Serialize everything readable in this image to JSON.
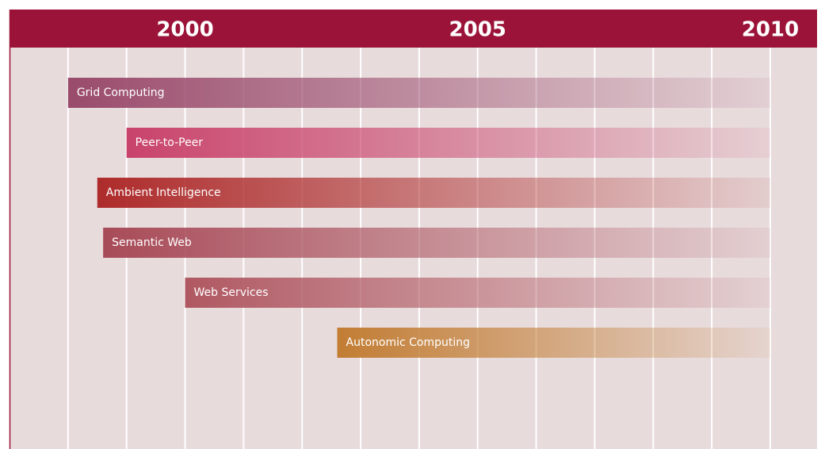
{
  "chart_data": {
    "type": "timeline",
    "xlim": [
      1997,
      2010.8
    ],
    "xticks": [
      2000,
      2005,
      2010
    ],
    "grid_lines": [
      1998,
      1999,
      2000,
      2001,
      2002,
      2003,
      2004,
      2005,
      2006,
      2007,
      2008,
      2009,
      2010
    ],
    "tasks": [
      {
        "name": "Grid Computing",
        "start": 1998,
        "end": 2010,
        "color": "#9a4b6c"
      },
      {
        "name": "Peer-to-Peer",
        "start": 1999,
        "end": 2010,
        "color": "#c9436b"
      },
      {
        "name": "Ambient Intelligence",
        "start": 1998.5,
        "end": 2010,
        "color": "#ae2b2b"
      },
      {
        "name": "Semantic Web",
        "start": 1998.6,
        "end": 2010,
        "color": "#a84b58"
      },
      {
        "name": "Web Services",
        "start": 2000,
        "end": 2010,
        "color": "#b05862"
      },
      {
        "name": "Autonomic Computing",
        "start": 2002.6,
        "end": 2010,
        "color": "#c27d33"
      }
    ]
  }
}
